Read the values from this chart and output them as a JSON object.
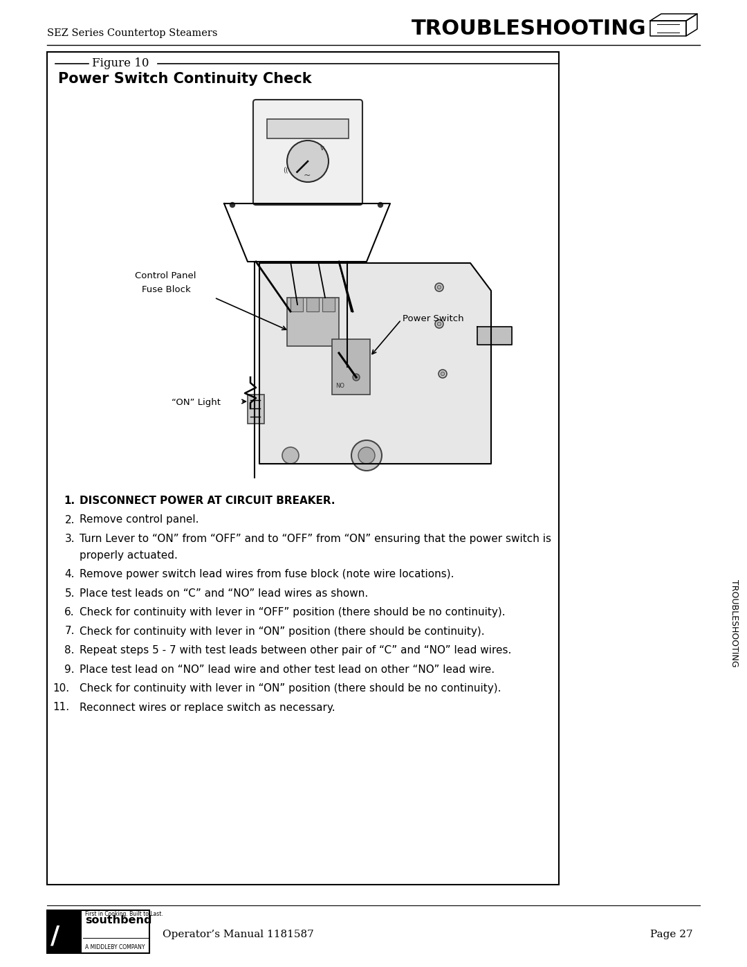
{
  "page_bg": "#ffffff",
  "header_left_plain": "SEZ Series Countertop Steamers",
  "header_right": "TROUBLESHOOTING",
  "figure_label": "Figure 10",
  "box_title": "Power Switch Continuity Check",
  "label_control_panel_line1": "Control Panel",
  "label_control_panel_line2": "Fuse Block",
  "label_power_switch": "Power Switch",
  "label_on_light": "\"ON\" Light",
  "steps": [
    {
      "num": "1.",
      "bold": true,
      "text": "DISCONNECT POWER AT CIRCUIT BREAKER."
    },
    {
      "num": "2.",
      "bold": false,
      "text": "Remove control panel."
    },
    {
      "num": "3.",
      "bold": false,
      "text": "Turn Lever to “ON” from “OFF” and to “OFF” from “ON” ensuring that the power switch is properly actuated.",
      "wrap": true
    },
    {
      "num": "4.",
      "bold": false,
      "text": "Remove power switch lead wires from fuse block (note wire locations)."
    },
    {
      "num": "5.",
      "bold": false,
      "text": "Place test leads on “C” and “NO” lead wires as shown."
    },
    {
      "num": "6.",
      "bold": false,
      "text": "Check for continuity with lever in “OFF” position (there should be no continuity)."
    },
    {
      "num": "7.",
      "bold": false,
      "text": "Check for continuity with lever in “ON” position (there should be continuity)."
    },
    {
      "num": "8.",
      "bold": false,
      "text": "Repeat steps 5 - 7 with test leads between other pair of “C” and “NO” lead wires."
    },
    {
      "num": "9.",
      "bold": false,
      "text": "Place test lead on “NO” lead wire and other test lead on other “NO” lead wire."
    },
    {
      "num": "10.",
      "bold": false,
      "text": "Check for continuity with lever in “ON” position (there should be no continuity)."
    },
    {
      "num": "11.",
      "bold": false,
      "text": "Reconnect wires or replace switch as necessary."
    }
  ],
  "footer_manual_plain": "Operator’s Manual 1181587",
  "footer_page_plain": "Page 27",
  "sidebar_text": "TROUBLESHOOTING",
  "box_border_color": "#000000",
  "text_color": "#000000"
}
